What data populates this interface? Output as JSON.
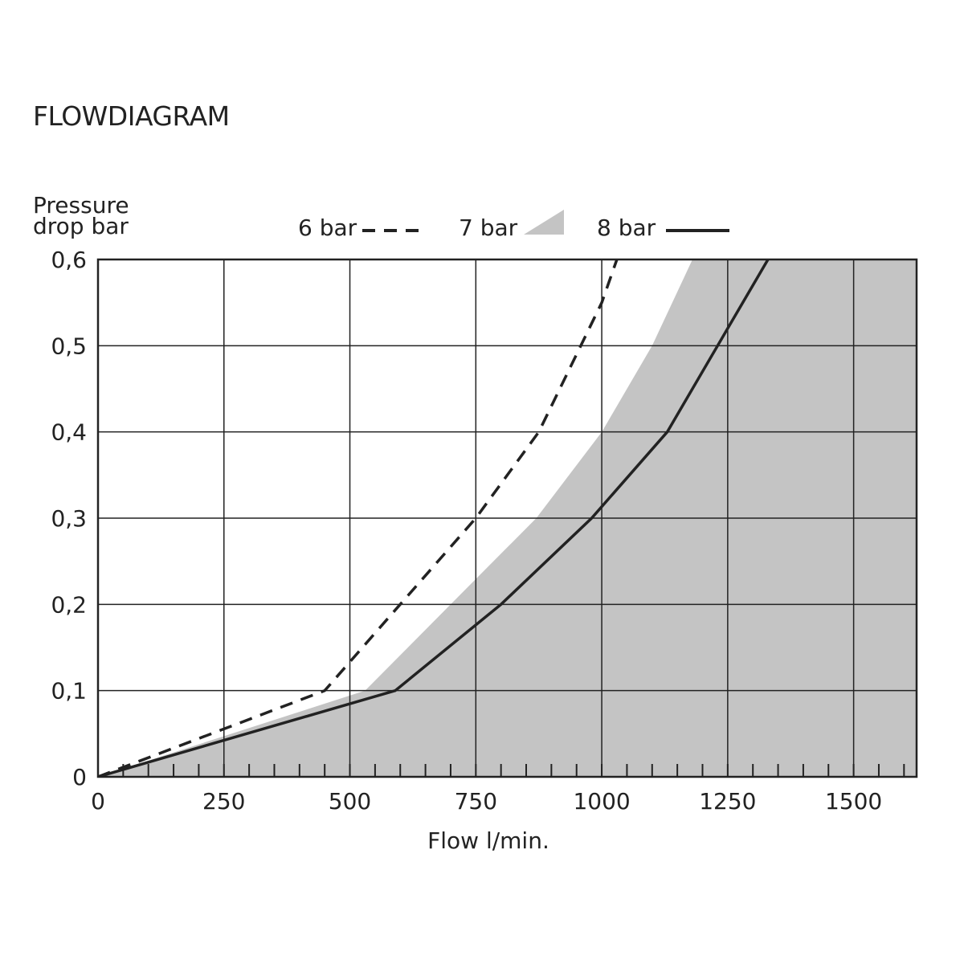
{
  "page": {
    "title": "FLOWDIAGRAM"
  },
  "chart_data": {
    "type": "line",
    "title": "",
    "ylabel_lines": [
      "Pressure",
      "drop bar"
    ],
    "xlabel": "Flow l/min.",
    "xlim": [
      0,
      1625
    ],
    "ylim": [
      0,
      0.6
    ],
    "x_ticks": [
      {
        "value": 0,
        "label": "0"
      },
      {
        "value": 250,
        "label": "250"
      },
      {
        "value": 500,
        "label": "500"
      },
      {
        "value": 750,
        "label": "750"
      },
      {
        "value": 1000,
        "label": "1000"
      },
      {
        "value": 1250,
        "label": "1250"
      },
      {
        "value": 1500,
        "label": "1500"
      }
    ],
    "y_ticks": [
      {
        "value": 0,
        "label": "0"
      },
      {
        "value": 0.1,
        "label": "0,1"
      },
      {
        "value": 0.2,
        "label": "0,2"
      },
      {
        "value": 0.3,
        "label": "0,3"
      },
      {
        "value": 0.4,
        "label": "0,4"
      },
      {
        "value": 0.5,
        "label": "0,5"
      },
      {
        "value": 0.6,
        "label": "0,6"
      }
    ],
    "minor_tick_step": 50,
    "grid": true,
    "legend_position": "top",
    "series": [
      {
        "name": "6 bar",
        "style": "dashed",
        "color": "#222222",
        "points": [
          [
            0,
            0
          ],
          [
            450,
            0.1
          ],
          [
            600,
            0.2
          ],
          [
            750,
            0.3
          ],
          [
            875,
            0.4
          ],
          [
            1000,
            0.55
          ],
          [
            1030,
            0.6
          ]
        ]
      },
      {
        "name": "7 bar",
        "style": "area",
        "color": "#c4c4c4",
        "points": [
          [
            0,
            0
          ],
          [
            530,
            0.1
          ],
          [
            700,
            0.2
          ],
          [
            870,
            0.3
          ],
          [
            1000,
            0.4
          ],
          [
            1100,
            0.5
          ],
          [
            1180,
            0.6
          ]
        ]
      },
      {
        "name": "8 bar",
        "style": "solid",
        "color": "#222222",
        "points": [
          [
            0,
            0
          ],
          [
            590,
            0.1
          ],
          [
            800,
            0.2
          ],
          [
            980,
            0.3
          ],
          [
            1130,
            0.4
          ],
          [
            1250,
            0.52
          ],
          [
            1330,
            0.6
          ]
        ]
      }
    ]
  }
}
